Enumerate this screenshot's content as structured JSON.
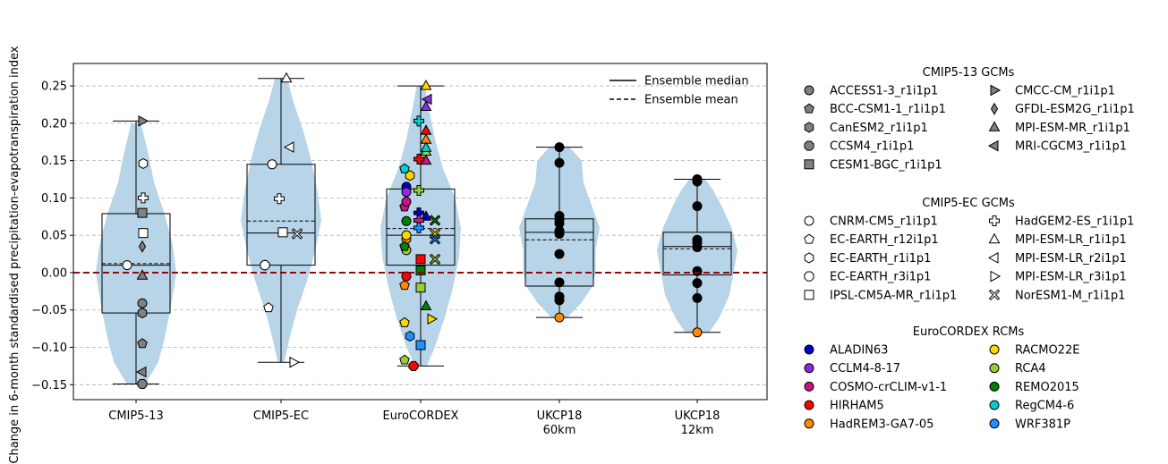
{
  "chart_data": {
    "type": "violin",
    "ylabel": "Change in 6-month standardised precipitation-evapotranspiration index",
    "ylim": [
      -0.17,
      0.28
    ],
    "yticks": [
      -0.15,
      -0.1,
      -0.05,
      0.0,
      0.05,
      0.1,
      0.15,
      0.2,
      0.25
    ],
    "ytick_labels": [
      "−0.15",
      "−0.10",
      "−0.05",
      "0.00",
      "0.05",
      "0.10",
      "0.15",
      "0.20",
      "0.25"
    ],
    "grid": "horizontal dashed",
    "zero_line_color": "#8b0000",
    "violin_color": "#b8d4e8",
    "groups": [
      {
        "label": [
          "CMIP5-13"
        ],
        "box": {
          "q1": -0.054,
          "q3": 0.079,
          "median": 0.01,
          "mean": 0.012,
          "min": -0.149,
          "max": 0.203
        },
        "violin": [
          [
            -0.15,
            0.22
          ],
          [
            -0.12,
            0.55
          ],
          [
            -0.09,
            0.7
          ],
          [
            -0.05,
            0.85
          ],
          [
            0.0,
            1.0
          ],
          [
            0.04,
            0.9
          ],
          [
            0.08,
            0.7
          ],
          [
            0.12,
            0.45
          ],
          [
            0.16,
            0.3
          ],
          [
            0.2,
            0.12
          ]
        ],
        "points": [
          {
            "model": "ACCESS1-3_r1i1p1",
            "y": -0.041
          },
          {
            "model": "BCC-CSM1-1_r1i1p1",
            "y": -0.095
          },
          {
            "model": "CanESM2_r1i1p1",
            "y": -0.054
          },
          {
            "model": "CCSM4_r1i1p1",
            "y": -0.149
          },
          {
            "model": "CESM1-BGC_r1i1p1",
            "y": 0.08
          },
          {
            "model": "CMCC-CM_r1i1p1",
            "y": 0.203
          },
          {
            "model": "GFDL-ESM2G_r1i1p1",
            "y": 0.035
          },
          {
            "model": "MPI-ESM-MR_r1i1p1",
            "y": -0.004
          },
          {
            "model": "MRI-CGCM3_r1i1p1",
            "y": -0.133
          },
          {
            "model": "CNRM-CM5_r1i1p1",
            "y": 0.01
          },
          {
            "model": "EC-EARTH_r1i1p1",
            "y": 0.146
          },
          {
            "model": "HadGEM2-ES_r1i1p1",
            "y": 0.1
          },
          {
            "model": "IPSL-CM5A-MR_r1i1p1",
            "y": 0.053
          }
        ]
      },
      {
        "label": [
          "CMIP5-EC"
        ],
        "box": {
          "q1": 0.01,
          "q3": 0.145,
          "median": 0.053,
          "mean": 0.069,
          "min": -0.12,
          "max": 0.26
        },
        "violin": [
          [
            -0.12,
            0.08
          ],
          [
            -0.09,
            0.2
          ],
          [
            -0.05,
            0.4
          ],
          [
            -0.01,
            0.65
          ],
          [
            0.03,
            0.85
          ],
          [
            0.07,
            1.0
          ],
          [
            0.11,
            0.9
          ],
          [
            0.15,
            0.75
          ],
          [
            0.19,
            0.55
          ],
          [
            0.23,
            0.3
          ],
          [
            0.26,
            0.15
          ]
        ],
        "points": [
          {
            "model": "CNRM-CM5_r1i1p1",
            "y": 0.145
          },
          {
            "model": "EC-EARTH_r12i1p1",
            "y": -0.047
          },
          {
            "model": "EC-EARTH_r1i1p1",
            "y": 0.01
          },
          {
            "model": "EC-EARTH_r3i1p1",
            "y": 0.01
          },
          {
            "model": "IPSL-CM5A-MR_r1i1p1",
            "y": 0.054
          },
          {
            "model": "HadGEM2-ES_r1i1p1",
            "y": 0.099
          },
          {
            "model": "MPI-ESM-LR_r1i1p1",
            "y": 0.26
          },
          {
            "model": "MPI-ESM-LR_r2i1p1",
            "y": 0.168
          },
          {
            "model": "MPI-ESM-LR_r3i1p1",
            "y": -0.12
          },
          {
            "model": "NorESM1-M_r1i1p1",
            "y": 0.052
          }
        ]
      },
      {
        "label": [
          "EuroCORDEX"
        ],
        "box": {
          "q1": 0.01,
          "q3": 0.112,
          "median": 0.05,
          "mean": 0.059,
          "min": -0.125,
          "max": 0.25
        },
        "violin": [
          [
            -0.125,
            0.15
          ],
          [
            -0.1,
            0.35
          ],
          [
            -0.06,
            0.6
          ],
          [
            -0.02,
            0.8
          ],
          [
            0.02,
            0.95
          ],
          [
            0.06,
            1.0
          ],
          [
            0.1,
            0.85
          ],
          [
            0.14,
            0.55
          ],
          [
            0.18,
            0.35
          ],
          [
            0.22,
            0.2
          ],
          [
            0.25,
            0.1
          ]
        ],
        "points": [
          {
            "rcm": "ALADIN63",
            "gcm": "HadGEM2-ES_r1i1p1",
            "y": 0.08
          },
          {
            "rcm": "ALADIN63",
            "gcm": "MPI-ESM-LR_r1i1p1",
            "y": 0.075
          },
          {
            "rcm": "ALADIN63",
            "gcm": "CNRM-CM5_r1i1p1",
            "y": 0.115
          },
          {
            "rcm": "CCLM4-8-17",
            "gcm": "CNRM-CM5_r1i1p1",
            "y": 0.108
          },
          {
            "rcm": "CCLM4-8-17",
            "gcm": "MPI-ESM-LR_r2i1p1",
            "y": 0.232
          },
          {
            "rcm": "CCLM4-8-17",
            "gcm": "MPI-ESM-LR_r1i1p1",
            "y": 0.222
          },
          {
            "rcm": "COSMO-crCLIM-v1-1",
            "gcm": "EC-EARTH_r12i1p1",
            "y": 0.088
          },
          {
            "rcm": "COSMO-crCLIM-v1-1",
            "gcm": "HadGEM2-ES_r1i1p1",
            "y": 0.07
          },
          {
            "rcm": "COSMO-crCLIM-v1-1",
            "gcm": "MPI-ESM-LR_r1i1p1",
            "y": 0.15
          },
          {
            "rcm": "COSMO-crCLIM-v1-1",
            "gcm": "CNRM-CM5_r1i1p1",
            "y": 0.095
          },
          {
            "rcm": "HIRHAM5",
            "gcm": "EC-EARTH_r3i1p1",
            "y": -0.125
          },
          {
            "rcm": "HIRHAM5",
            "gcm": "CNRM-CM5_r1i1p1",
            "y": -0.005
          },
          {
            "rcm": "HIRHAM5",
            "gcm": "HadGEM2-ES_r1i1p1",
            "y": 0.152
          },
          {
            "rcm": "HIRHAM5",
            "gcm": "IPSL-CM5A-MR_r1i1p1",
            "y": 0.018
          },
          {
            "rcm": "HIRHAM5",
            "gcm": "MPI-ESM-LR_r1i1p1",
            "y": 0.19
          },
          {
            "rcm": "HadREM3-GA7-05",
            "gcm": "EC-EARTH_r12i1p1",
            "y": -0.017
          },
          {
            "rcm": "HadREM3-GA7-05",
            "gcm": "CNRM-CM5_r1i1p1",
            "y": 0.045
          },
          {
            "rcm": "HadREM3-GA7-05",
            "gcm": "MPI-ESM-LR_r1i1p1",
            "y": 0.178
          },
          {
            "rcm": "RACMO22E",
            "gcm": "EC-EARTH_r1i1p1",
            "y": 0.13
          },
          {
            "rcm": "RACMO22E",
            "gcm": "EC-EARTH_r12i1p1",
            "y": -0.067
          },
          {
            "rcm": "RACMO22E",
            "gcm": "CNRM-CM5_r1i1p1",
            "y": 0.05
          },
          {
            "rcm": "RACMO22E",
            "gcm": "MPI-ESM-LR_r1i1p1",
            "y": 0.25
          },
          {
            "rcm": "RACMO22E",
            "gcm": "MPI-ESM-LR_r3i1p1",
            "y": -0.062
          },
          {
            "rcm": "RACMO22E",
            "gcm": "NorESM1-M_r1i1p1",
            "y": 0.052
          },
          {
            "rcm": "RCA4",
            "gcm": "EC-EARTH_r12i1p1",
            "y": -0.117
          },
          {
            "rcm": "RCA4",
            "gcm": "CNRM-CM5_r1i1p1",
            "y": 0.03
          },
          {
            "rcm": "RCA4",
            "gcm": "IPSL-CM5A-MR_r1i1p1",
            "y": -0.02
          },
          {
            "rcm": "RCA4",
            "gcm": "MPI-ESM-LR_r1i1p1",
            "y": 0.162
          },
          {
            "rcm": "RCA4",
            "gcm": "NorESM1-M_r1i1p1",
            "y": 0.018
          },
          {
            "rcm": "RCA4",
            "gcm": "HadGEM2-ES_r1i1p1",
            "y": 0.11
          },
          {
            "rcm": "REMO2015",
            "gcm": "CNRM-CM5_r1i1p1",
            "y": 0.069
          },
          {
            "rcm": "REMO2015",
            "gcm": "EC-EARTH_r12i1p1",
            "y": 0.035
          },
          {
            "rcm": "REMO2015",
            "gcm": "IPSL-CM5A-MR_r1i1p1",
            "y": 0.003
          },
          {
            "rcm": "REMO2015",
            "gcm": "MPI-ESM-LR_r1i1p1",
            "y": -0.045
          },
          {
            "rcm": "REMO2015",
            "gcm": "NorESM1-M_r1i1p1",
            "y": 0.07
          },
          {
            "rcm": "RegCM4-6",
            "gcm": "EC-EARTH_r12i1p1",
            "y": 0.139
          },
          {
            "rcm": "RegCM4-6",
            "gcm": "MPI-ESM-LR_r1i1p1",
            "y": 0.167
          },
          {
            "rcm": "RegCM4-6",
            "gcm": "HadGEM2-ES_r1i1p1",
            "y": 0.203
          },
          {
            "rcm": "WRF381P",
            "gcm": "EC-EARTH_r1i1p1",
            "y": -0.085
          },
          {
            "rcm": "WRF381P",
            "gcm": "IPSL-CM5A-MR_r1i1p1",
            "y": -0.097
          },
          {
            "rcm": "WRF381P",
            "gcm": "NorESM1-M_r1i1p1",
            "y": 0.045
          },
          {
            "rcm": "WRF381P",
            "gcm": "HadGEM2-ES_r1i1p1",
            "y": 0.06
          }
        ]
      },
      {
        "label": [
          "UKCP18",
          "60km"
        ],
        "box": {
          "q1": -0.018,
          "q3": 0.072,
          "median": 0.054,
          "mean": 0.044,
          "min": -0.06,
          "max": 0.168
        },
        "violin": [
          [
            -0.06,
            0.2
          ],
          [
            -0.04,
            0.55
          ],
          [
            -0.02,
            0.8
          ],
          [
            0.0,
            0.9
          ],
          [
            0.03,
            0.9
          ],
          [
            0.06,
            1.0
          ],
          [
            0.09,
            0.8
          ],
          [
            0.12,
            0.6
          ],
          [
            0.15,
            0.55
          ],
          [
            0.168,
            0.25
          ]
        ],
        "points": [
          0.168,
          0.147,
          0.076,
          0.071,
          0.066,
          0.056,
          0.052,
          0.025,
          -0.013,
          -0.032,
          -0.037,
          -0.06
        ],
        "last_point_color": "#ff8c00"
      },
      {
        "label": [
          "UKCP18",
          "12km"
        ],
        "box": {
          "q1": -0.003,
          "q3": 0.054,
          "median": 0.035,
          "mean": 0.032,
          "min": -0.08,
          "max": 0.125
        },
        "violin": [
          [
            -0.08,
            0.3
          ],
          [
            -0.06,
            0.55
          ],
          [
            -0.03,
            0.8
          ],
          [
            0.0,
            0.9
          ],
          [
            0.03,
            1.0
          ],
          [
            0.06,
            0.85
          ],
          [
            0.09,
            0.6
          ],
          [
            0.11,
            0.4
          ],
          [
            0.125,
            0.2
          ]
        ],
        "points": [
          0.125,
          0.122,
          0.089,
          0.044,
          0.04,
          0.034,
          0.002,
          -0.014,
          -0.034,
          -0.08
        ],
        "last_point_color": "#ff8c00"
      }
    ],
    "line_legend": {
      "position": "top-right",
      "items": [
        {
          "label": "Ensemble median",
          "style": "solid"
        },
        {
          "label": "Ensemble mean",
          "style": "dashed"
        }
      ]
    },
    "legends": [
      {
        "title": "CMIP5-13 GCMs",
        "fill": "#808080",
        "columns": [
          [
            {
              "label": "ACCESS1-3_r1i1p1",
              "marker": "circle"
            },
            {
              "label": "BCC-CSM1-1_r1i1p1",
              "marker": "pentagon"
            },
            {
              "label": "CanESM2_r1i1p1",
              "marker": "hexagon"
            },
            {
              "label": "CCSM4_r1i1p1",
              "marker": "octagon"
            },
            {
              "label": "CESM1-BGC_r1i1p1",
              "marker": "square"
            }
          ],
          [
            {
              "label": "CMCC-CM_r1i1p1",
              "marker": "tri-right"
            },
            {
              "label": "GFDL-ESM2G_r1i1p1",
              "marker": "diamond"
            },
            {
              "label": "MPI-ESM-MR_r1i1p1",
              "marker": "tri-up"
            },
            {
              "label": "MRI-CGCM3_r1i1p1",
              "marker": "tri-left"
            }
          ]
        ]
      },
      {
        "title": "CMIP5-EC GCMs",
        "fill": "#ffffff",
        "columns": [
          [
            {
              "label": "CNRM-CM5_r1i1p1",
              "marker": "circle"
            },
            {
              "label": "EC-EARTH_r12i1p1",
              "marker": "pentagon"
            },
            {
              "label": "EC-EARTH_r1i1p1",
              "marker": "hexagon"
            },
            {
              "label": "EC-EARTH_r3i1p1",
              "marker": "octagon"
            },
            {
              "label": "IPSL-CM5A-MR_r1i1p1",
              "marker": "square"
            }
          ],
          [
            {
              "label": "HadGEM2-ES_r1i1p1",
              "marker": "plus"
            },
            {
              "label": "MPI-ESM-LR_r1i1p1",
              "marker": "tri-up"
            },
            {
              "label": "MPI-ESM-LR_r2i1p1",
              "marker": "tri-left"
            },
            {
              "label": "MPI-ESM-LR_r3i1p1",
              "marker": "tri-right"
            },
            {
              "label": "NorESM1-M_r1i1p1",
              "marker": "x"
            }
          ]
        ]
      },
      {
        "title": "EuroCORDEX RCMs",
        "columns": [
          [
            {
              "label": "ALADIN63",
              "color": "#0000cd"
            },
            {
              "label": "CCLM4-8-17",
              "color": "#8a2be2"
            },
            {
              "label": "COSMO-crCLIM-v1-1",
              "color": "#c71585"
            },
            {
              "label": "HIRHAM5",
              "color": "#ff0000"
            },
            {
              "label": "HadREM3-GA7-05",
              "color": "#ff8c00"
            }
          ],
          [
            {
              "label": "RACMO22E",
              "color": "#ffd700"
            },
            {
              "label": "RCA4",
              "color": "#9acd32"
            },
            {
              "label": "REMO2015",
              "color": "#008000"
            },
            {
              "label": "RegCM4-6",
              "color": "#00ced1"
            },
            {
              "label": "WRF381P",
              "color": "#1e90ff"
            }
          ]
        ]
      }
    ]
  }
}
